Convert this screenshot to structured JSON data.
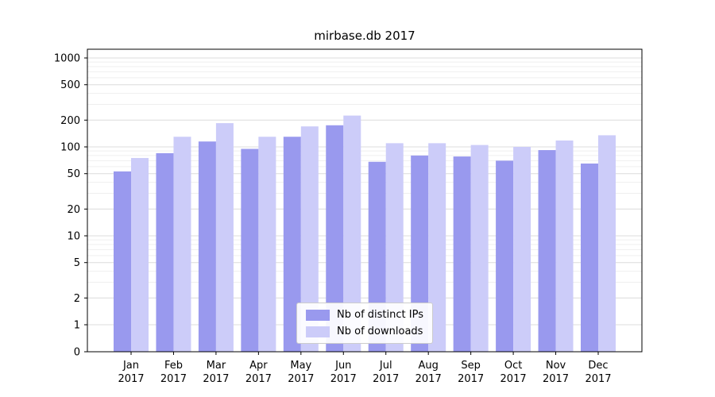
{
  "chart_data": {
    "type": "bar",
    "title": "mirbase.db 2017",
    "yscale": "symlog",
    "ylim": [
      0,
      1250
    ],
    "yticks": [
      0,
      1,
      2,
      5,
      10,
      20,
      50,
      100,
      200,
      500,
      1000
    ],
    "grid": true,
    "legend_position": "lower center",
    "categories": [
      "Jan 2017",
      "Feb 2017",
      "Mar 2017",
      "Apr 2017",
      "May 2017",
      "Jun 2017",
      "Jul 2017",
      "Aug 2017",
      "Sep 2017",
      "Oct 2017",
      "Nov 2017",
      "Dec 2017"
    ],
    "series": [
      {
        "name": "Nb of distinct IPs",
        "color": "#9999ee",
        "values": [
          53,
          85,
          115,
          95,
          130,
          175,
          68,
          80,
          78,
          70,
          92,
          65
        ]
      },
      {
        "name": "Nb of downloads",
        "color": "#ccccf9",
        "values": [
          75,
          130,
          185,
          130,
          170,
          225,
          110,
          110,
          105,
          100,
          118,
          135
        ]
      }
    ]
  }
}
